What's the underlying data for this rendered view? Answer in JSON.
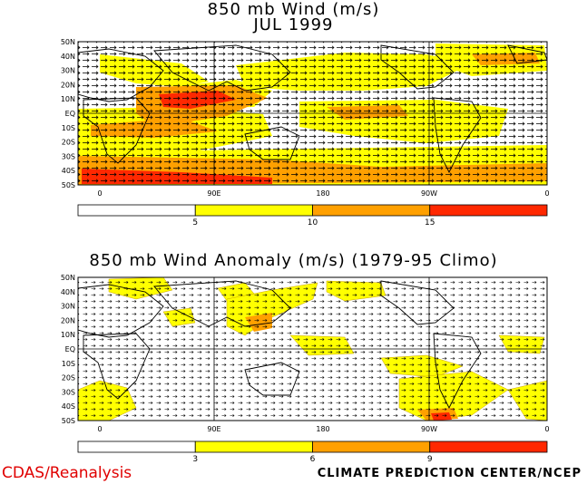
{
  "map1": {
    "title": "850 mb Wind (m/s)",
    "subtitle": "JUL 1999",
    "lat_labels": [
      "50N",
      "40N",
      "30N",
      "20N",
      "10N",
      "EQ",
      "10S",
      "20S",
      "30S",
      "40S",
      "50S"
    ],
    "lon_labels": [
      "0",
      "90E",
      "180",
      "90W",
      "0"
    ],
    "colorbar": {
      "ticks": [
        "5",
        "10",
        "15"
      ],
      "colors": [
        "#ffffff",
        "#ffff00",
        "#ffa000",
        "#ff2800"
      ]
    }
  },
  "map2": {
    "title": "850 mb Wind Anomaly (m/s) (1979-95 Climo)",
    "lat_labels": [
      "50N",
      "40N",
      "30N",
      "20N",
      "10N",
      "EQ",
      "10S",
      "20S",
      "30S",
      "40S",
      "50S"
    ],
    "lon_labels": [
      "0",
      "90E",
      "180",
      "90W",
      "0"
    ],
    "colorbar": {
      "ticks": [
        "3",
        "6",
        "9"
      ],
      "colors": [
        "#ffffff",
        "#ffff00",
        "#ffa000",
        "#ff2800"
      ]
    }
  },
  "footer": {
    "left": "CDAS/Reanalysis",
    "right": "CLIMATE PREDICTION CENTER/NCEP"
  }
}
